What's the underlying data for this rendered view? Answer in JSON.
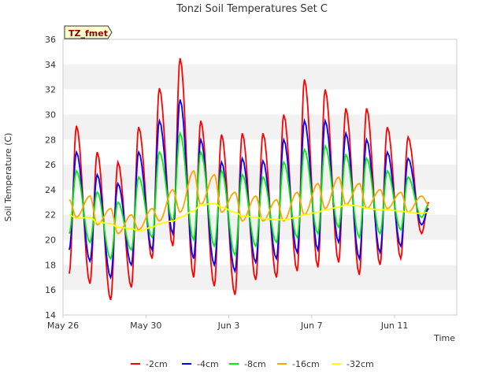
{
  "chart_data": {
    "type": "line",
    "title": "Tonzi Soil Temperatures Set C",
    "xlabel": "Time",
    "ylabel": "Soil Temperature (C)",
    "badge": "TZ_fmet",
    "x_unit": "days (date axis)",
    "x_range": [
      "May 26",
      "Jun 13"
    ],
    "ylim": [
      14,
      36
    ],
    "yticks": [
      14,
      16,
      18,
      20,
      22,
      24,
      26,
      28,
      30,
      32,
      34,
      36
    ],
    "xticks": [
      {
        "day": 0,
        "label": "May 26"
      },
      {
        "day": 4,
        "label": "May 30"
      },
      {
        "day": 8,
        "label": "Jun 3"
      },
      {
        "day": 12,
        "label": "Jun 7"
      },
      {
        "day": 16,
        "label": "Jun 11"
      }
    ],
    "grid": "horizontal bands",
    "legend_position": "bottom",
    "x_days": [
      0.3,
      0.65,
      1.3,
      1.65,
      2.3,
      2.65,
      3.3,
      3.65,
      4.3,
      4.65,
      5.3,
      5.65,
      6.3,
      6.65,
      7.3,
      7.65,
      8.3,
      8.65,
      9.3,
      9.65,
      10.3,
      10.65,
      11.3,
      11.65,
      12.3,
      12.65,
      13.3,
      13.65,
      14.3,
      14.65,
      15.3,
      15.65,
      16.3,
      16.65,
      17.3,
      17.65
    ],
    "series": [
      {
        "name": "-2cm",
        "color": "#ff0000",
        "values": [
          17.3,
          29.1,
          16.5,
          27.0,
          15.2,
          26.2,
          16.2,
          29.0,
          18.5,
          32.1,
          19.5,
          34.5,
          17.0,
          29.5,
          16.3,
          28.4,
          15.6,
          28.5,
          16.8,
          28.5,
          17.0,
          30.0,
          17.5,
          32.8,
          17.8,
          32.0,
          18.2,
          30.5,
          17.2,
          30.5,
          18.0,
          29.0,
          18.5,
          28.2,
          20.5,
          23.0
        ]
      },
      {
        "name": "-4cm",
        "color": "#0000ff",
        "values": [
          19.2,
          27.0,
          18.3,
          25.2,
          17.0,
          24.5,
          18.0,
          27.0,
          19.2,
          29.5,
          20.5,
          31.2,
          18.5,
          28.0,
          18.0,
          26.2,
          17.5,
          26.5,
          18.2,
          26.3,
          18.5,
          28.0,
          19.0,
          29.5,
          19.2,
          29.5,
          19.8,
          28.5,
          18.5,
          28.0,
          19.0,
          27.0,
          19.5,
          26.5,
          21.2,
          22.5
        ]
      },
      {
        "name": "-8cm",
        "color": "#00ee00",
        "values": [
          20.5,
          25.5,
          19.8,
          23.8,
          18.5,
          23.0,
          19.2,
          25.0,
          20.2,
          27.0,
          21.5,
          28.5,
          20.0,
          27.0,
          19.5,
          25.5,
          18.8,
          25.2,
          19.5,
          25.0,
          19.8,
          26.2,
          20.2,
          27.2,
          20.5,
          27.5,
          21.0,
          26.8,
          20.2,
          26.5,
          20.5,
          25.5,
          20.8,
          25.0,
          21.8,
          22.8
        ]
      },
      {
        "name": "-16cm",
        "color": "#ffa500",
        "values": [
          23.2,
          21.8,
          23.5,
          21.2,
          22.5,
          20.5,
          22.0,
          20.8,
          22.5,
          21.5,
          24.0,
          22.2,
          25.5,
          22.8,
          25.2,
          22.2,
          23.8,
          21.5,
          23.5,
          21.5,
          23.2,
          21.5,
          23.8,
          22.0,
          24.5,
          22.5,
          25.0,
          22.8,
          24.5,
          22.5,
          24.0,
          22.5,
          23.8,
          22.2,
          23.5,
          22.8
        ]
      },
      {
        "name": "-32cm",
        "color": "#ffff00",
        "values": [
          22.0,
          21.7,
          21.8,
          21.4,
          21.3,
          21.0,
          20.9,
          20.7,
          21.0,
          21.3,
          21.5,
          21.8,
          22.3,
          22.8,
          22.9,
          22.6,
          22.2,
          21.9,
          21.8,
          21.7,
          21.6,
          21.6,
          21.8,
          22.0,
          22.2,
          22.4,
          22.6,
          22.8,
          22.7,
          22.5,
          22.4,
          22.4,
          22.3,
          22.2,
          22.1,
          22.2
        ]
      }
    ]
  }
}
